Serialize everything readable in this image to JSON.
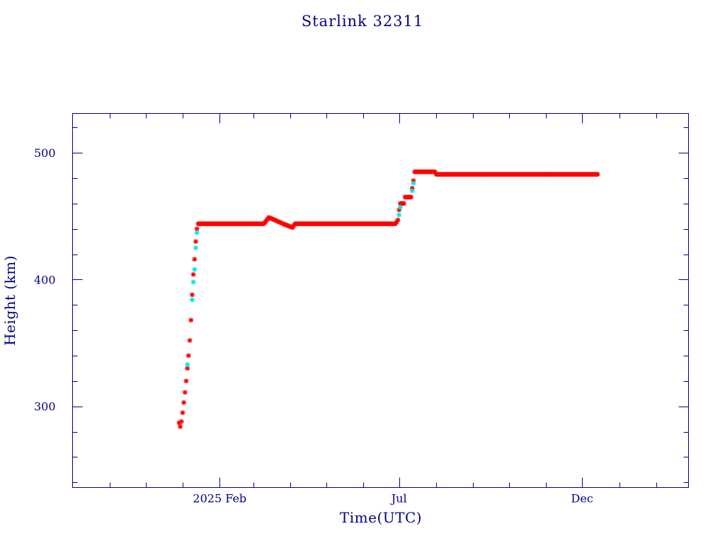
{
  "chart_data": {
    "type": "scatter",
    "title": "Starlink 32311",
    "xlabel": "Time(UTC)",
    "ylabel": "Height (km)",
    "x_unit": "date",
    "xlim": [
      "2024-10-01",
      "2026-02-28"
    ],
    "ylim": [
      236,
      531
    ],
    "x_ticks": [
      {
        "date": "2025-02-01",
        "label": "2025 Feb"
      },
      {
        "date": "2025-07-01",
        "label": "Jul"
      },
      {
        "date": "2025-12-01",
        "label": "Dec"
      }
    ],
    "x_minor_ticks": [
      "2024-11-01",
      "2024-12-01",
      "2025-01-01",
      "2025-03-01",
      "2025-04-01",
      "2025-05-01",
      "2025-06-01",
      "2025-08-01",
      "2025-09-01",
      "2025-10-01",
      "2025-11-01",
      "2026-01-01",
      "2026-02-01"
    ],
    "y_ticks": [
      300,
      400,
      500
    ],
    "y_minor_step": 20,
    "grid": false,
    "colors": {
      "axes": "#00008B",
      "primary_marker": "#FF0000",
      "secondary_marker": "#00E5EE"
    },
    "series": [
      {
        "color": "#FF0000",
        "marker": "asterisk",
        "points": [
          [
            "2024-12-29",
            287
          ],
          [
            "2024-12-30",
            284
          ],
          [
            "2024-12-31",
            288
          ],
          [
            "2025-01-01",
            295
          ],
          [
            "2025-01-02",
            303
          ],
          [
            "2025-01-03",
            311
          ],
          [
            "2025-01-04",
            320
          ],
          [
            "2025-01-05",
            330
          ],
          [
            "2025-01-06",
            340
          ],
          [
            "2025-01-07",
            352
          ],
          [
            "2025-01-08",
            368
          ],
          [
            "2025-01-09",
            388
          ],
          [
            "2025-01-10",
            404
          ],
          [
            "2025-01-11",
            416
          ],
          [
            "2025-01-12",
            430
          ],
          [
            "2025-01-13",
            440
          ],
          [
            "2025-01-14",
            444
          ],
          [
            "2025-01-20",
            444
          ],
          [
            "2025-02-01",
            444
          ],
          [
            "2025-02-15",
            444
          ],
          [
            "2025-03-01",
            444
          ],
          [
            "2025-03-10",
            444
          ],
          [
            "2025-03-14",
            449
          ],
          [
            "2025-03-19",
            447
          ],
          [
            "2025-03-26",
            444
          ],
          [
            "2025-04-03",
            441
          ],
          [
            "2025-04-05",
            444
          ],
          [
            "2025-04-15",
            444
          ],
          [
            "2025-05-01",
            444
          ],
          [
            "2025-05-20",
            444
          ],
          [
            "2025-06-10",
            444
          ],
          [
            "2025-06-28",
            444
          ],
          [
            "2025-06-30",
            447
          ],
          [
            "2025-07-01",
            455
          ],
          [
            "2025-07-02",
            460
          ],
          [
            "2025-07-05",
            460
          ],
          [
            "2025-07-06",
            465
          ],
          [
            "2025-07-11",
            465
          ],
          [
            "2025-07-12",
            472
          ],
          [
            "2025-07-13",
            478
          ],
          [
            "2025-07-14",
            485
          ],
          [
            "2025-07-22",
            485
          ],
          [
            "2025-07-31",
            485
          ],
          [
            "2025-08-01",
            483
          ],
          [
            "2025-08-15",
            483
          ],
          [
            "2025-09-01",
            483
          ],
          [
            "2025-09-15",
            483
          ],
          [
            "2025-10-01",
            483
          ],
          [
            "2025-10-15",
            483
          ],
          [
            "2025-11-01",
            483
          ],
          [
            "2025-11-15",
            483
          ],
          [
            "2025-12-01",
            483
          ],
          [
            "2025-12-14",
            483
          ]
        ]
      },
      {
        "color": "#00E5EE",
        "marker": "asterisk",
        "points": [
          [
            "2025-01-05",
            333
          ],
          [
            "2025-01-09",
            384
          ],
          [
            "2025-01-10",
            398
          ],
          [
            "2025-01-11",
            408
          ],
          [
            "2025-01-12",
            425
          ],
          [
            "2025-01-13",
            437
          ],
          [
            "2025-07-01",
            451
          ],
          [
            "2025-07-02",
            457
          ],
          [
            "2025-07-12",
            470
          ],
          [
            "2025-07-13",
            476
          ]
        ]
      }
    ]
  }
}
